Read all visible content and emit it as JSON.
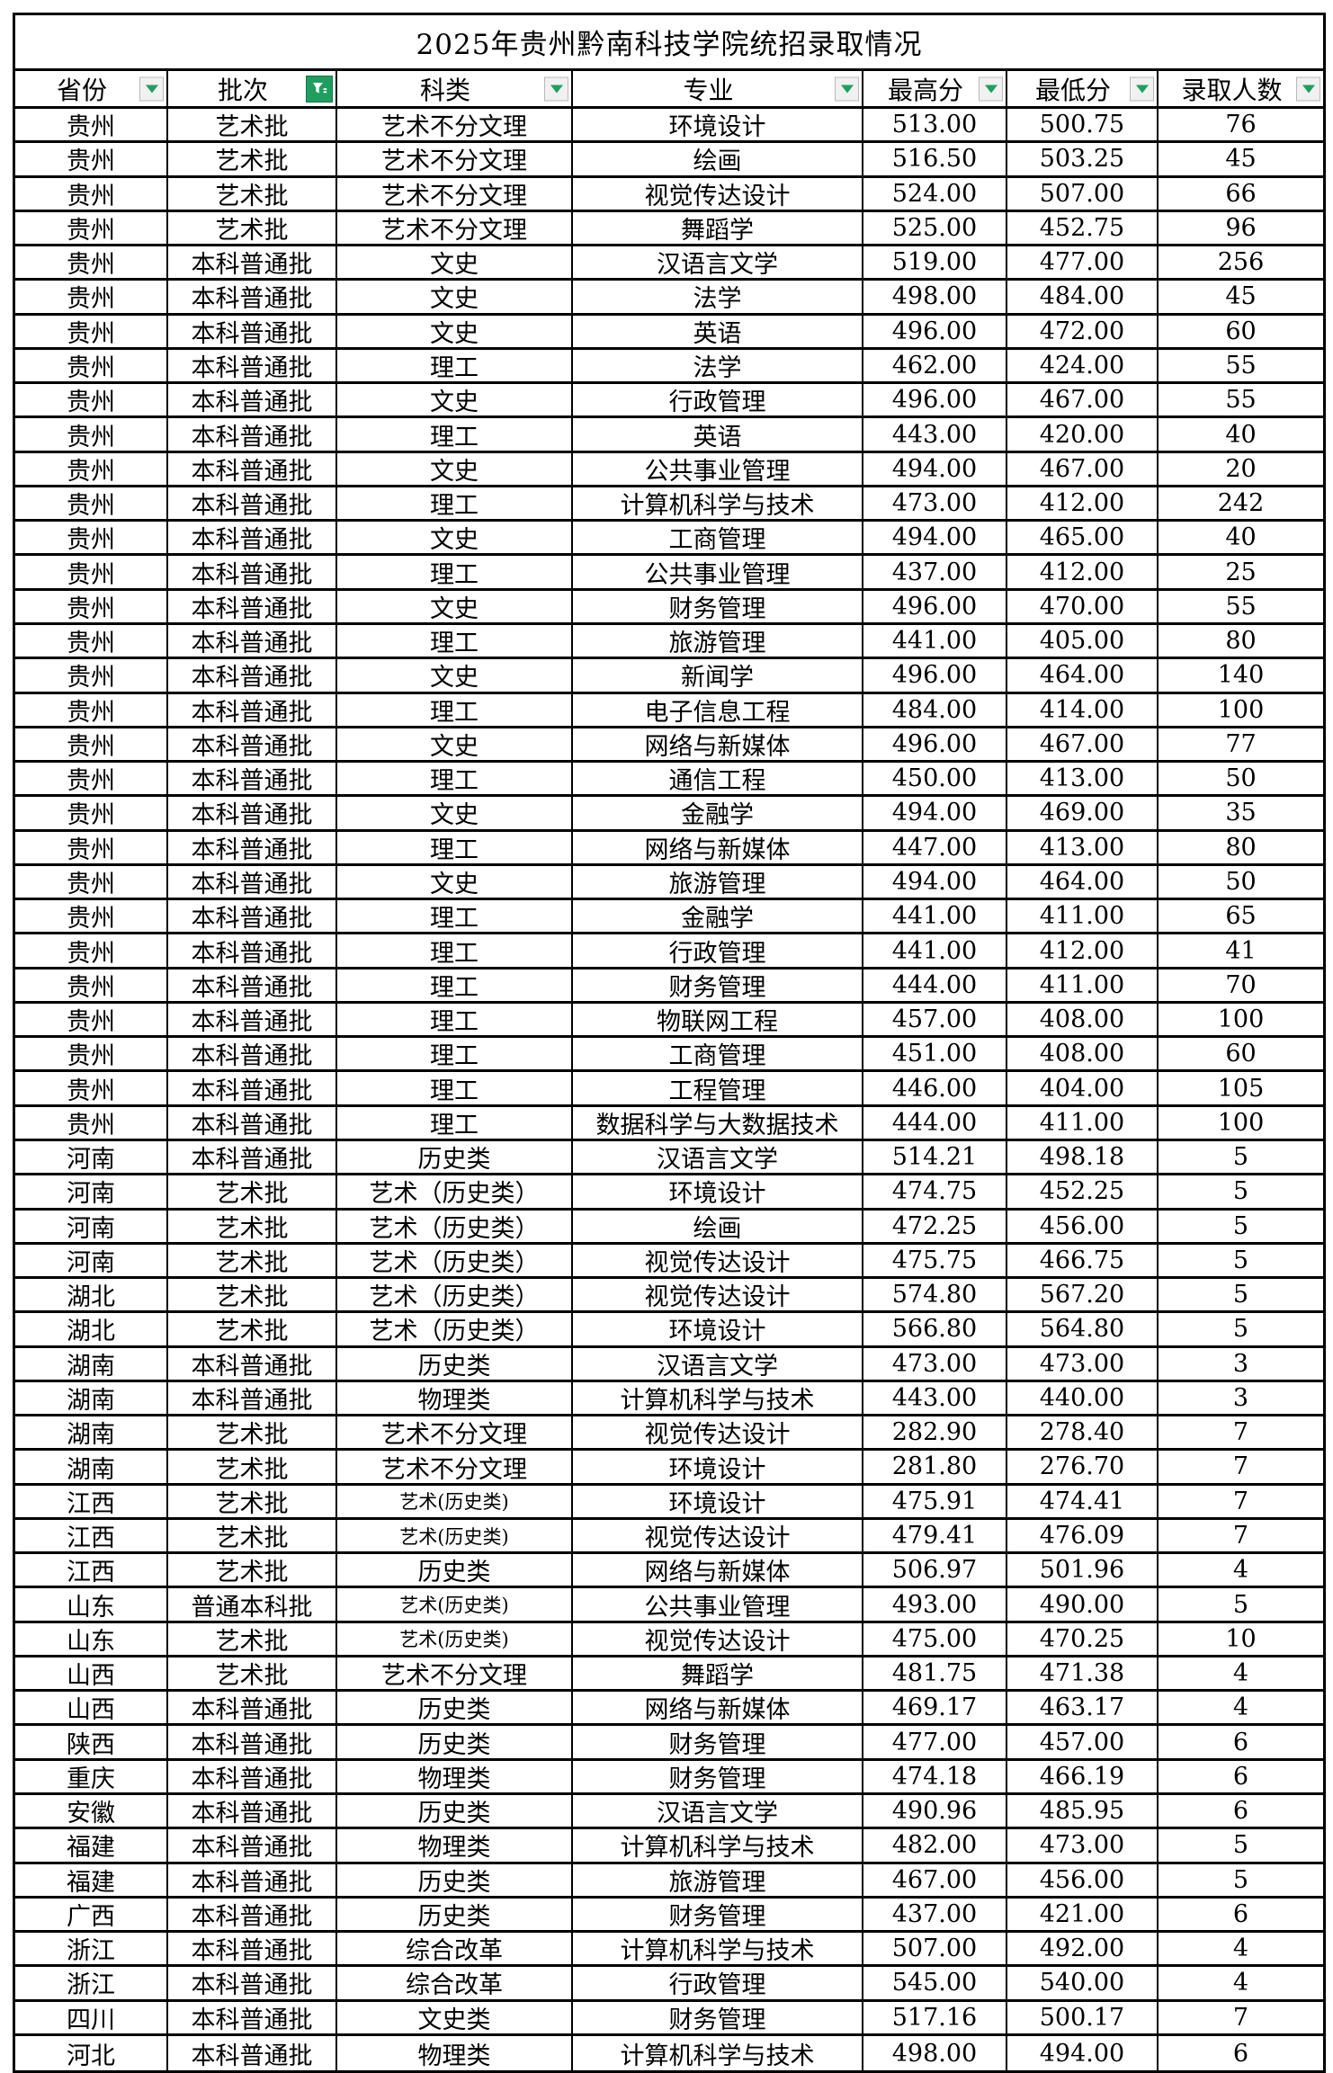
{
  "title": "2025年贵州黔南科技学院统招录取情况",
  "colors": {
    "accent_green": "#1F9E60",
    "grid": "#000000",
    "filter_button_bg": "#F1F1F1",
    "filter_button_border": "#B9B9B9"
  },
  "icons": {
    "dropdown": "chevron-down-triangle",
    "batch_filter": "funnel-filter-applied"
  },
  "columns": [
    {
      "key": "province",
      "label": "省份",
      "filter": "dropdown"
    },
    {
      "key": "batch",
      "label": "批次",
      "filter": "active-funnel"
    },
    {
      "key": "category",
      "label": "科类",
      "filter": "dropdown"
    },
    {
      "key": "major",
      "label": "专业",
      "filter": "dropdown"
    },
    {
      "key": "max_score",
      "label": "最高分",
      "filter": "dropdown"
    },
    {
      "key": "min_score",
      "label": "最低分",
      "filter": "dropdown"
    },
    {
      "key": "admit_count",
      "label": "录取人数",
      "filter": "dropdown"
    }
  ],
  "rows": [
    [
      "贵州",
      "艺术批",
      "艺术不分文理",
      "环境设计",
      "513.00",
      "500.75",
      "76"
    ],
    [
      "贵州",
      "艺术批",
      "艺术不分文理",
      "绘画",
      "516.50",
      "503.25",
      "45"
    ],
    [
      "贵州",
      "艺术批",
      "艺术不分文理",
      "视觉传达设计",
      "524.00",
      "507.00",
      "66"
    ],
    [
      "贵州",
      "艺术批",
      "艺术不分文理",
      "舞蹈学",
      "525.00",
      "452.75",
      "96"
    ],
    [
      "贵州",
      "本科普通批",
      "文史",
      "汉语言文学",
      "519.00",
      "477.00",
      "256"
    ],
    [
      "贵州",
      "本科普通批",
      "文史",
      "法学",
      "498.00",
      "484.00",
      "45"
    ],
    [
      "贵州",
      "本科普通批",
      "文史",
      "英语",
      "496.00",
      "472.00",
      "60"
    ],
    [
      "贵州",
      "本科普通批",
      "理工",
      "法学",
      "462.00",
      "424.00",
      "55"
    ],
    [
      "贵州",
      "本科普通批",
      "文史",
      "行政管理",
      "496.00",
      "467.00",
      "55"
    ],
    [
      "贵州",
      "本科普通批",
      "理工",
      "英语",
      "443.00",
      "420.00",
      "40"
    ],
    [
      "贵州",
      "本科普通批",
      "文史",
      "公共事业管理",
      "494.00",
      "467.00",
      "20"
    ],
    [
      "贵州",
      "本科普通批",
      "理工",
      "计算机科学与技术",
      "473.00",
      "412.00",
      "242"
    ],
    [
      "贵州",
      "本科普通批",
      "文史",
      "工商管理",
      "494.00",
      "465.00",
      "40"
    ],
    [
      "贵州",
      "本科普通批",
      "理工",
      "公共事业管理",
      "437.00",
      "412.00",
      "25"
    ],
    [
      "贵州",
      "本科普通批",
      "文史",
      "财务管理",
      "496.00",
      "470.00",
      "55"
    ],
    [
      "贵州",
      "本科普通批",
      "理工",
      "旅游管理",
      "441.00",
      "405.00",
      "80"
    ],
    [
      "贵州",
      "本科普通批",
      "文史",
      "新闻学",
      "496.00",
      "464.00",
      "140"
    ],
    [
      "贵州",
      "本科普通批",
      "理工",
      "电子信息工程",
      "484.00",
      "414.00",
      "100"
    ],
    [
      "贵州",
      "本科普通批",
      "文史",
      "网络与新媒体",
      "496.00",
      "467.00",
      "77"
    ],
    [
      "贵州",
      "本科普通批",
      "理工",
      "通信工程",
      "450.00",
      "413.00",
      "50"
    ],
    [
      "贵州",
      "本科普通批",
      "文史",
      "金融学",
      "494.00",
      "469.00",
      "35"
    ],
    [
      "贵州",
      "本科普通批",
      "理工",
      "网络与新媒体",
      "447.00",
      "413.00",
      "80"
    ],
    [
      "贵州",
      "本科普通批",
      "文史",
      "旅游管理",
      "494.00",
      "464.00",
      "50"
    ],
    [
      "贵州",
      "本科普通批",
      "理工",
      "金融学",
      "441.00",
      "411.00",
      "65"
    ],
    [
      "贵州",
      "本科普通批",
      "理工",
      "行政管理",
      "441.00",
      "412.00",
      "41"
    ],
    [
      "贵州",
      "本科普通批",
      "理工",
      "财务管理",
      "444.00",
      "411.00",
      "70"
    ],
    [
      "贵州",
      "本科普通批",
      "理工",
      "物联网工程",
      "457.00",
      "408.00",
      "100"
    ],
    [
      "贵州",
      "本科普通批",
      "理工",
      "工商管理",
      "451.00",
      "408.00",
      "60"
    ],
    [
      "贵州",
      "本科普通批",
      "理工",
      "工程管理",
      "446.00",
      "404.00",
      "105"
    ],
    [
      "贵州",
      "本科普通批",
      "理工",
      "数据科学与大数据技术",
      "444.00",
      "411.00",
      "100"
    ],
    [
      "河南",
      "本科普通批",
      "历史类",
      "汉语言文学",
      "514.21",
      "498.18",
      "5"
    ],
    [
      "河南",
      "艺术批",
      "艺术（历史类）",
      "环境设计",
      "474.75",
      "452.25",
      "5"
    ],
    [
      "河南",
      "艺术批",
      "艺术（历史类）",
      "绘画",
      "472.25",
      "456.00",
      "5"
    ],
    [
      "河南",
      "艺术批",
      "艺术（历史类）",
      "视觉传达设计",
      "475.75",
      "466.75",
      "5"
    ],
    [
      "湖北",
      "艺术批",
      "艺术（历史类）",
      "视觉传达设计",
      "574.80",
      "567.20",
      "5"
    ],
    [
      "湖北",
      "艺术批",
      "艺术（历史类）",
      "环境设计",
      "566.80",
      "564.80",
      "5"
    ],
    [
      "湖南",
      "本科普通批",
      "历史类",
      "汉语言文学",
      "473.00",
      "473.00",
      "3"
    ],
    [
      "湖南",
      "本科普通批",
      "物理类",
      "计算机科学与技术",
      "443.00",
      "440.00",
      "3"
    ],
    [
      "湖南",
      "艺术批",
      "艺术不分文理",
      "视觉传达设计",
      "282.90",
      "278.40",
      "7"
    ],
    [
      "湖南",
      "艺术批",
      "艺术不分文理",
      "环境设计",
      "281.80",
      "276.70",
      "7"
    ],
    [
      "江西",
      "艺术批",
      "艺术(历史类)",
      "环境设计",
      "475.91",
      "474.41",
      "7"
    ],
    [
      "江西",
      "艺术批",
      "艺术(历史类)",
      "视觉传达设计",
      "479.41",
      "476.09",
      "7"
    ],
    [
      "江西",
      "艺术批",
      "历史类",
      "网络与新媒体",
      "506.97",
      "501.96",
      "4"
    ],
    [
      "山东",
      "普通本科批",
      "艺术(历史类)",
      "公共事业管理",
      "493.00",
      "490.00",
      "5"
    ],
    [
      "山东",
      "艺术批",
      "艺术(历史类)",
      "视觉传达设计",
      "475.00",
      "470.25",
      "10"
    ],
    [
      "山西",
      "艺术批",
      "艺术不分文理",
      "舞蹈学",
      "481.75",
      "471.38",
      "4"
    ],
    [
      "山西",
      "本科普通批",
      "历史类",
      "网络与新媒体",
      "469.17",
      "463.17",
      "4"
    ],
    [
      "陕西",
      "本科普通批",
      "历史类",
      "财务管理",
      "477.00",
      "457.00",
      "6"
    ],
    [
      "重庆",
      "本科普通批",
      "物理类",
      "财务管理",
      "474.18",
      "466.19",
      "6"
    ],
    [
      "安徽",
      "本科普通批",
      "历史类",
      "汉语言文学",
      "490.96",
      "485.95",
      "6"
    ],
    [
      "福建",
      "本科普通批",
      "物理类",
      "计算机科学与技术",
      "482.00",
      "473.00",
      "5"
    ],
    [
      "福建",
      "本科普通批",
      "历史类",
      "旅游管理",
      "467.00",
      "456.00",
      "5"
    ],
    [
      "广西",
      "本科普通批",
      "历史类",
      "财务管理",
      "437.00",
      "421.00",
      "6"
    ],
    [
      "浙江",
      "本科普通批",
      "综合改革",
      "计算机科学与技术",
      "507.00",
      "492.00",
      "4"
    ],
    [
      "浙江",
      "本科普通批",
      "综合改革",
      "行政管理",
      "545.00",
      "540.00",
      "4"
    ],
    [
      "四川",
      "本科普通批",
      "文史类",
      "财务管理",
      "517.16",
      "500.17",
      "7"
    ],
    [
      "河北",
      "本科普通批",
      "物理类",
      "计算机科学与技术",
      "498.00",
      "494.00",
      "6"
    ]
  ]
}
